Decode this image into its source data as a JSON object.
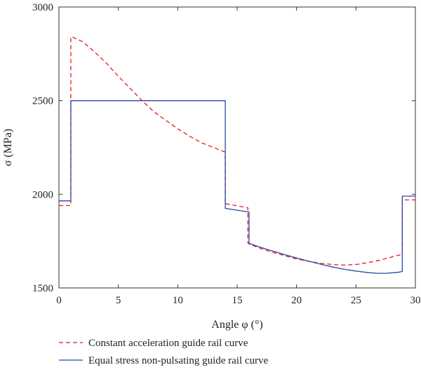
{
  "chart_data": {
    "type": "line",
    "title": "",
    "xlabel": "Angle φ (°)",
    "ylabel": "σ (MPa)",
    "xlim": [
      0,
      30
    ],
    "ylim": [
      1500,
      3000
    ],
    "x_ticks": [
      0,
      5,
      10,
      15,
      20,
      25,
      30
    ],
    "y_ticks": [
      1500,
      2000,
      2500,
      3000
    ],
    "grid": false,
    "legend_position": "below",
    "series": [
      {
        "name": "Constant acceleration guide rail curve",
        "color": "#e8191c",
        "style": "dashed",
        "x": [
          0,
          1,
          1,
          1.1,
          2,
          3,
          4,
          5,
          6,
          7,
          8,
          9,
          10,
          11,
          12,
          13,
          14,
          14,
          15.9,
          15.9,
          16,
          17,
          18,
          19,
          20,
          21,
          22,
          23,
          24,
          25,
          26,
          27,
          28,
          28.9,
          28.9,
          30
        ],
        "y": [
          1940,
          1940,
          2840,
          2840,
          2815,
          2760,
          2700,
          2630,
          2565,
          2500,
          2440,
          2395,
          2350,
          2310,
          2275,
          2250,
          2225,
          1950,
          1928,
          1740,
          1735,
          1710,
          1690,
          1672,
          1655,
          1642,
          1632,
          1625,
          1622,
          1625,
          1635,
          1648,
          1665,
          1680,
          1970,
          1970
        ]
      },
      {
        "name": "Equal stress non-pulsating guide rail curve",
        "color": "#2845a6",
        "style": "solid",
        "x": [
          0,
          1,
          1,
          14,
          14,
          16,
          16,
          17,
          18,
          19,
          20,
          21,
          22,
          23,
          24,
          25,
          26,
          26.8,
          27.5,
          28.5,
          28.9,
          28.9,
          30
        ],
        "y": [
          1965,
          1965,
          2500,
          2500,
          1925,
          1905,
          1738,
          1716,
          1697,
          1678,
          1660,
          1643,
          1627,
          1612,
          1600,
          1590,
          1582,
          1578,
          1578,
          1583,
          1588,
          1990,
          1990
        ]
      }
    ]
  }
}
